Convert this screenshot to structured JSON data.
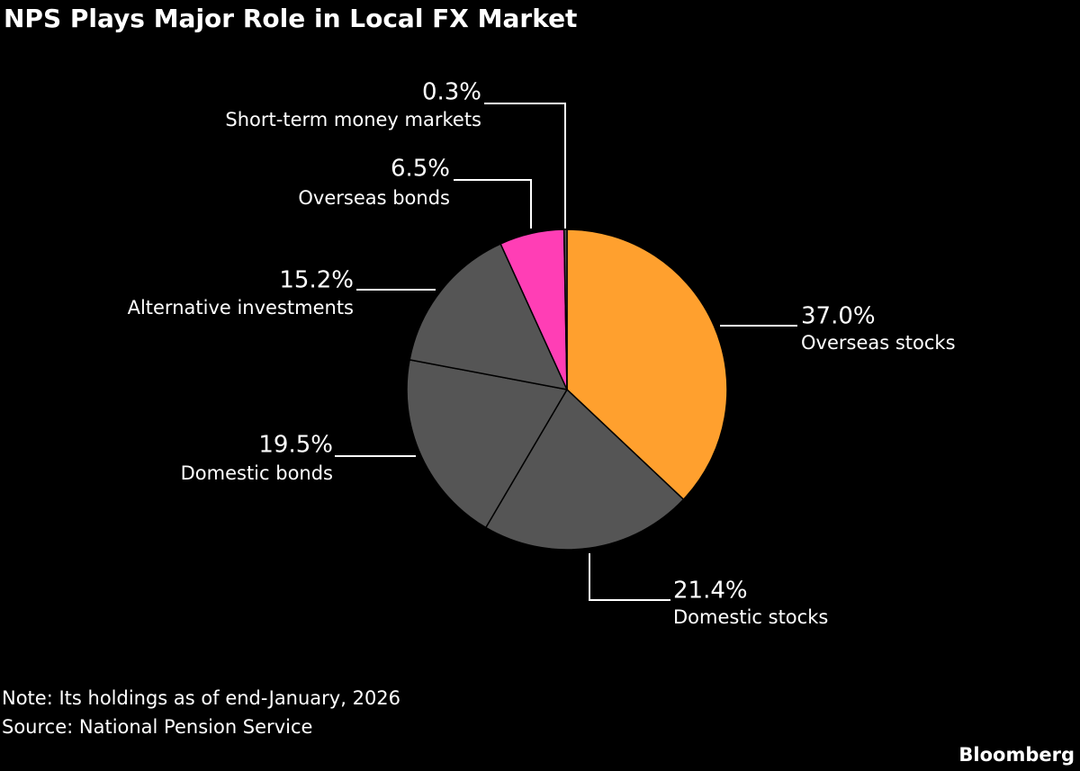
{
  "chart_data": {
    "type": "pie",
    "title": "NPS Plays Major Role in Local FX Market",
    "categories": [
      "Overseas stocks",
      "Domestic stocks",
      "Domestic bonds",
      "Alternative investments",
      "Overseas bonds",
      "Short-term money markets"
    ],
    "values": [
      37.0,
      21.4,
      19.5,
      15.2,
      6.5,
      0.3
    ],
    "value_labels": [
      "37.0%",
      "21.4%",
      "19.5%",
      "15.2%",
      "6.5%",
      "0.3%"
    ],
    "colors": [
      "#ffa02e",
      "#555555",
      "#555555",
      "#555555",
      "#ff3eb5",
      "#555555"
    ],
    "note": "Note: Its holdings as of end-January, 2026",
    "source": "Source: National Pension Service",
    "brand": "Bloomberg"
  }
}
